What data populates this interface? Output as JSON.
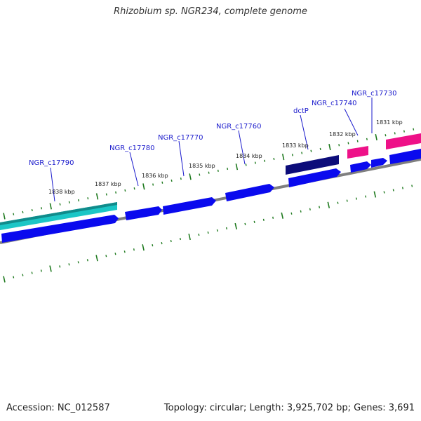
{
  "title": "Rhizobium sp. NGR234, complete genome",
  "footer": {
    "accession": "Accession: NC_012587",
    "stats": "Topology: circular; Length: 3,925,702 bp; Genes: 3,691"
  },
  "colors": {
    "forward_gene": "#0a0aee",
    "dctP_gene": "#0c0c7a",
    "cyan_gene": "#1bc6c6",
    "pink_gene": "#ee1188",
    "backbone": "#7f7f7f",
    "ticks": "#1f7a1f",
    "label_text": "#1a1acc"
  },
  "kbp_markers": [
    "1838 kbp",
    "1837 kbp",
    "1836 kbp",
    "1835 kbp",
    "1834 kbp",
    "1833 kbp",
    "1832 kbp",
    "1831 kbp"
  ],
  "gene_labels": [
    "NGR_c17790",
    "NGR_c17780",
    "NGR_c17770",
    "NGR_c17760",
    "dctP",
    "NGR_c17740",
    "NGR_c17730"
  ]
}
